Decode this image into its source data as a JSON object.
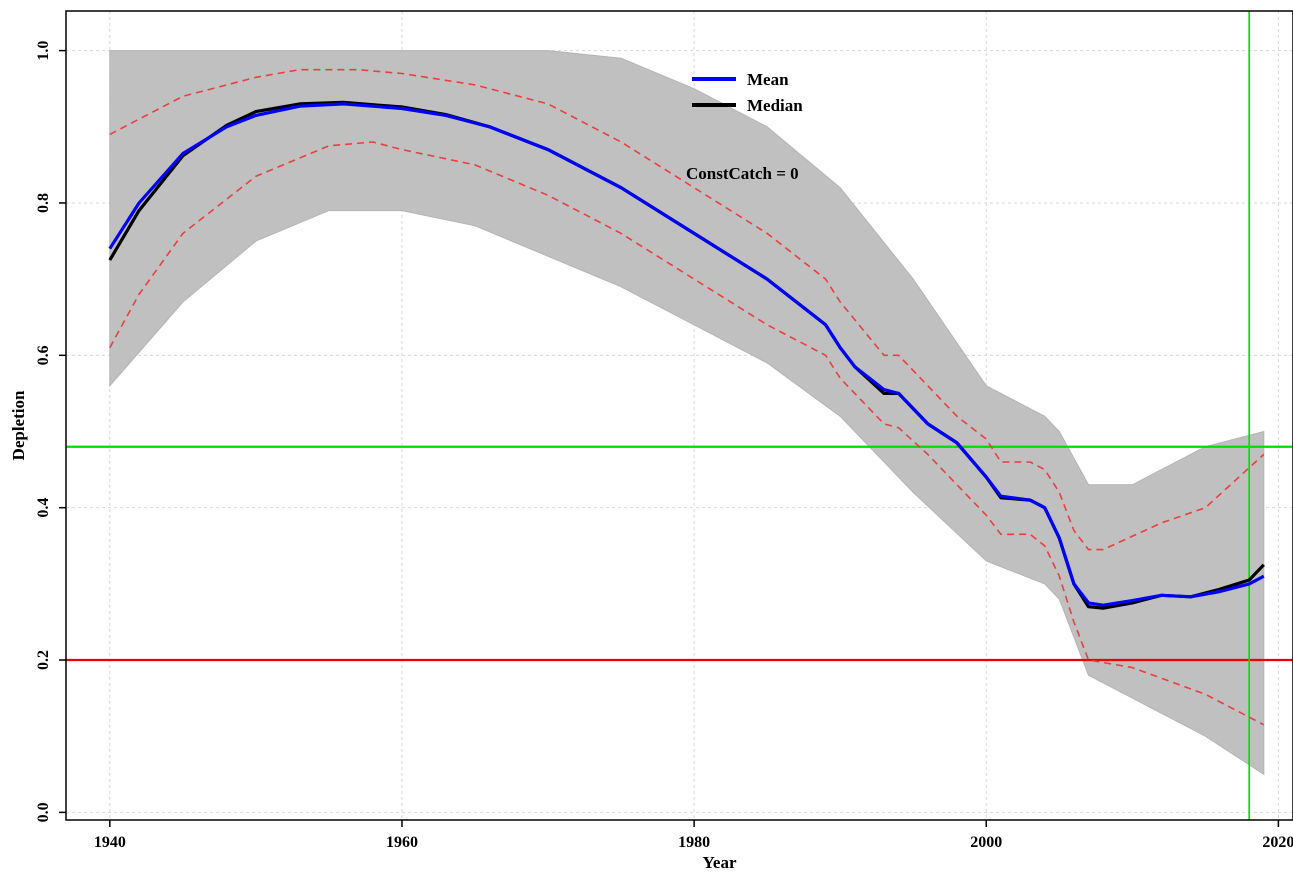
{
  "chart_data": {
    "type": "line",
    "title": "",
    "xlabel": "Year",
    "ylabel": "Depletion",
    "xlim": [
      1937,
      2021
    ],
    "ylim": [
      -0.01,
      1.052
    ],
    "x_ticks": [
      1940,
      1960,
      1980,
      2000,
      2020
    ],
    "y_ticks": [
      0.0,
      0.2,
      0.4,
      0.6,
      0.8,
      1.0
    ],
    "x_tick_labels": [
      "1940",
      "1960",
      "1980",
      "2000",
      "2020"
    ],
    "y_tick_labels": [
      "0.0",
      "0.2",
      "0.4",
      "0.6",
      "0.8",
      "1.0"
    ],
    "grid": true,
    "annotation": "ConstCatch = 0",
    "legend": {
      "placement": "top-center",
      "entries": [
        {
          "label": "Mean",
          "color": "#0000ff"
        },
        {
          "label": "Median",
          "color": "#000000"
        }
      ]
    },
    "reference_lines": [
      {
        "orientation": "horizontal",
        "y": 0.48,
        "color": "#00dd00"
      },
      {
        "orientation": "horizontal",
        "y": 0.2,
        "color": "#ee0000"
      },
      {
        "orientation": "vertical",
        "x": 2018,
        "color": "#00dd00"
      }
    ],
    "envelope": {
      "color": "#c0c0c0",
      "x": [
        1940,
        1945,
        1950,
        1955,
        1960,
        1965,
        1970,
        1975,
        1980,
        1985,
        1990,
        1995,
        2000,
        2004,
        2005,
        2007,
        2010,
        2015,
        2019
      ],
      "upper": [
        1.0,
        1.0,
        1.0,
        1.0,
        1.0,
        1.0,
        1.0,
        0.99,
        0.95,
        0.9,
        0.82,
        0.7,
        0.56,
        0.52,
        0.5,
        0.43,
        0.43,
        0.48,
        0.5
      ],
      "lower": [
        0.56,
        0.67,
        0.75,
        0.79,
        0.79,
        0.77,
        0.73,
        0.69,
        0.64,
        0.59,
        0.52,
        0.42,
        0.33,
        0.3,
        0.28,
        0.18,
        0.15,
        0.1,
        0.05
      ]
    },
    "series": [
      {
        "name": "Mean",
        "color": "#0000ff",
        "x": [
          1940,
          1942,
          1945,
          1948,
          1950,
          1953,
          1956,
          1960,
          1963,
          1966,
          1970,
          1975,
          1980,
          1985,
          1989,
          1990,
          1991,
          1993,
          1994,
          1996,
          1998,
          2000,
          2001,
          2003,
          2004,
          2005,
          2006,
          2007,
          2008,
          2010,
          2012,
          2014,
          2016,
          2018,
          2019
        ],
        "y": [
          0.74,
          0.8,
          0.865,
          0.9,
          0.915,
          0.927,
          0.93,
          0.924,
          0.915,
          0.9,
          0.87,
          0.82,
          0.76,
          0.7,
          0.64,
          0.61,
          0.585,
          0.555,
          0.55,
          0.51,
          0.485,
          0.44,
          0.415,
          0.41,
          0.4,
          0.36,
          0.3,
          0.275,
          0.272,
          0.278,
          0.285,
          0.283,
          0.29,
          0.3,
          0.31
        ]
      },
      {
        "name": "Median",
        "color": "#000000",
        "x": [
          1940,
          1942,
          1945,
          1948,
          1950,
          1953,
          1956,
          1960,
          1963,
          1966,
          1970,
          1975,
          1980,
          1985,
          1989,
          1990,
          1991,
          1993,
          1994,
          1996,
          1998,
          2000,
          2001,
          2003,
          2004,
          2005,
          2006,
          2007,
          2008,
          2010,
          2012,
          2014,
          2016,
          2018,
          2019
        ],
        "y": [
          0.725,
          0.79,
          0.862,
          0.902,
          0.92,
          0.93,
          0.932,
          0.926,
          0.916,
          0.9,
          0.87,
          0.82,
          0.76,
          0.7,
          0.64,
          0.61,
          0.585,
          0.55,
          0.55,
          0.51,
          0.485,
          0.44,
          0.413,
          0.41,
          0.4,
          0.36,
          0.3,
          0.27,
          0.268,
          0.275,
          0.285,
          0.283,
          0.293,
          0.305,
          0.325
        ]
      },
      {
        "name": "",
        "color": "#e84040",
        "dashed": true,
        "x": [
          1940,
          1945,
          1950,
          1953,
          1957,
          1960,
          1965,
          1970,
          1975,
          1980,
          1985,
          1989,
          1990,
          1993,
          1994,
          1996,
          1998,
          2000,
          2001,
          2003,
          2004,
          2005,
          2006,
          2007,
          2008,
          2012,
          2015,
          2019
        ],
        "y": [
          0.89,
          0.94,
          0.965,
          0.975,
          0.975,
          0.97,
          0.955,
          0.93,
          0.88,
          0.82,
          0.76,
          0.7,
          0.67,
          0.6,
          0.6,
          0.56,
          0.52,
          0.49,
          0.46,
          0.46,
          0.45,
          0.42,
          0.37,
          0.345,
          0.345,
          0.38,
          0.4,
          0.47
        ]
      },
      {
        "name": "",
        "color": "#e84040",
        "dashed": true,
        "x": [
          1940,
          1942,
          1945,
          1950,
          1955,
          1958,
          1960,
          1965,
          1970,
          1975,
          1980,
          1985,
          1989,
          1990,
          1993,
          1994,
          1996,
          1998,
          2000,
          2001,
          2003,
          2004,
          2005,
          2006,
          2007,
          2010,
          2015,
          2019
        ],
        "y": [
          0.61,
          0.68,
          0.76,
          0.835,
          0.875,
          0.88,
          0.87,
          0.85,
          0.81,
          0.76,
          0.7,
          0.64,
          0.6,
          0.57,
          0.51,
          0.505,
          0.47,
          0.43,
          0.39,
          0.365,
          0.365,
          0.35,
          0.31,
          0.25,
          0.2,
          0.19,
          0.155,
          0.115
        ]
      }
    ]
  }
}
